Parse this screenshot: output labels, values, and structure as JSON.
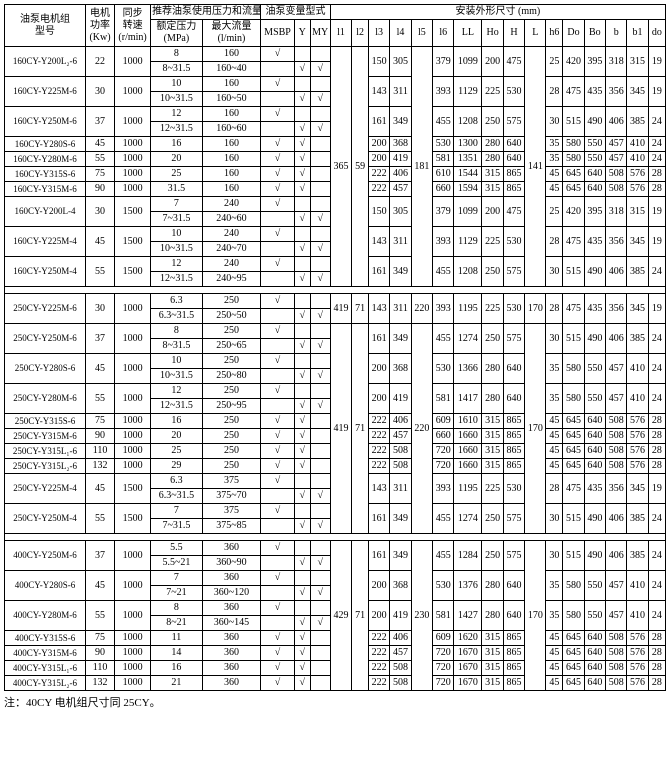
{
  "headers": {
    "model": "油泵电机组\n型号",
    "power": "电机\n功率\n(Kw)",
    "sync": "同步\n转速\n(r/min)",
    "pump_rec": "推荐油泵使用压力和流量",
    "var_type": "油泵变量型式",
    "install": "安装外形尺寸 (mm)",
    "rated_p": "额定压力\n(MPa)",
    "max_flow": "最大流量\n(l/min)",
    "cols": [
      "MSBP",
      "Y",
      "MY",
      "l1",
      "l2",
      "l3",
      "l4",
      "l5",
      "l6",
      "LL",
      "Ho",
      "H",
      "L",
      "h6",
      "Do",
      "Bo",
      "b",
      "b1",
      "do"
    ]
  },
  "note": "注：40CY 电机组尺寸同 25CY。",
  "s1": [
    {
      "m": "160CY-Y200L₂-6",
      "kw": "22",
      "rpm": "1000",
      "pa": "8",
      "pb": "8~31.5",
      "fa": "160",
      "fb": "160~40",
      "la": "√",
      "lb": "",
      "ya": "",
      "yb": "√",
      "mya": "",
      "myb": "√",
      "l3": "150",
      "l4": "305",
      "ll": "379",
      "lln": "1099",
      "ho": "200",
      "h": "475",
      "do": "25",
      "bo": "420",
      "b2": "395",
      "b": "318",
      "b1": "315",
      "dd": "19"
    },
    {
      "m": "160CY-Y225M-6",
      "kw": "30",
      "rpm": "1000",
      "pa": "10",
      "pb": "10~31.5",
      "fa": "160",
      "fb": "160~50",
      "la": "√",
      "lb": "",
      "ya": "",
      "yb": "√",
      "mya": "",
      "myb": "√",
      "l3": "143",
      "l4": "311",
      "ll": "393",
      "lln": "1129",
      "ho": "225",
      "h": "530",
      "do": "28",
      "bo": "475",
      "b2": "435",
      "b": "356",
      "b1": "345",
      "dd": "19"
    },
    {
      "m": "160CY-Y250M-6",
      "kw": "37",
      "rpm": "1000",
      "pa": "12",
      "pb": "12~31.5",
      "fa": "160",
      "fb": "160~60",
      "la": "√",
      "lb": "",
      "ya": "",
      "yb": "√",
      "mya": "",
      "myb": "√",
      "l3": "161",
      "l4": "349",
      "ll": "455",
      "lln": "1208",
      "ho": "250",
      "h": "575",
      "do": "30",
      "bo": "515",
      "b2": "490",
      "b": "406",
      "b1": "385",
      "dd": "24"
    },
    {
      "m": "160CY-Y280S-6",
      "kw": "45",
      "rpm": "1000",
      "pa": "16",
      "pb": "",
      "fa": "160",
      "fb": "",
      "la": "√",
      "lb": "",
      "ya": "√",
      "yb": "",
      "mya": "",
      "myb": "",
      "l3": "200",
      "l4": "368",
      "ll": "530",
      "lln": "1300",
      "ho": "280",
      "h": "640",
      "do": "35",
      "bo": "580",
      "b2": "550",
      "b": "457",
      "b1": "410",
      "dd": "24"
    },
    {
      "m": "160CY-Y280M-6",
      "kw": "55",
      "rpm": "1000",
      "pa": "20",
      "pb": "",
      "fa": "160",
      "fb": "",
      "la": "√",
      "lb": "",
      "ya": "√",
      "yb": "",
      "mya": "",
      "myb": "",
      "l3": "200",
      "l4": "419",
      "ll": "581",
      "lln": "1351",
      "ho": "280",
      "h": "640",
      "do": "35",
      "bo": "580",
      "b2": "550",
      "b": "457",
      "b1": "410",
      "dd": "24"
    },
    {
      "m": "160CY-Y315S-6",
      "kw": "75",
      "rpm": "1000",
      "pa": "25",
      "pb": "",
      "fa": "160",
      "fb": "",
      "la": "√",
      "lb": "",
      "ya": "√",
      "yb": "",
      "mya": "",
      "myb": "",
      "l3": "222",
      "l4": "406",
      "ll": "610",
      "lln": "1544",
      "ho": "315",
      "h": "865",
      "do": "45",
      "bo": "645",
      "b2": "640",
      "b": "508",
      "b1": "576",
      "dd": "28"
    },
    {
      "m": "160CY-Y315M-6",
      "kw": "90",
      "rpm": "1000",
      "pa": "31.5",
      "pb": "",
      "fa": "160",
      "fb": "",
      "la": "√",
      "lb": "",
      "ya": "√",
      "yb": "",
      "mya": "",
      "myb": "",
      "l3": "222",
      "l4": "457",
      "ll": "660",
      "lln": "1594",
      "ho": "315",
      "h": "865",
      "do": "45",
      "bo": "645",
      "b2": "640",
      "b": "508",
      "b1": "576",
      "dd": "28"
    },
    {
      "m": "160CY-Y200L-4",
      "kw": "30",
      "rpm": "1500",
      "pa": "7",
      "pb": "7~31.5",
      "fa": "240",
      "fb": "240~60",
      "la": "√",
      "lb": "",
      "ya": "",
      "yb": "√",
      "mya": "",
      "myb": "√",
      "l3": "150",
      "l4": "305",
      "ll": "379",
      "lln": "1099",
      "ho": "200",
      "h": "475",
      "do": "25",
      "bo": "420",
      "b2": "395",
      "b": "318",
      "b1": "315",
      "dd": "19"
    },
    {
      "m": "160CY-Y225M-4",
      "kw": "45",
      "rpm": "1500",
      "pa": "10",
      "pb": "10~31.5",
      "fa": "240",
      "fb": "240~70",
      "la": "√",
      "lb": "",
      "ya": "",
      "yb": "√",
      "mya": "",
      "myb": "√",
      "l3": "143",
      "l4": "311",
      "ll": "393",
      "lln": "1129",
      "ho": "225",
      "h": "530",
      "do": "28",
      "bo": "475",
      "b2": "435",
      "b": "356",
      "b1": "345",
      "dd": "19"
    },
    {
      "m": "160CY-Y250M-4",
      "kw": "55",
      "rpm": "1500",
      "pa": "12",
      "pb": "12~31.5",
      "fa": "240",
      "fb": "240~95",
      "la": "√",
      "lb": "",
      "ya": "",
      "yb": "√",
      "mya": "",
      "myb": "√",
      "l3": "161",
      "l4": "349",
      "ll": "455",
      "lln": "1208",
      "ho": "250",
      "h": "575",
      "do": "30",
      "bo": "515",
      "b2": "490",
      "b": "406",
      "b1": "385",
      "dd": "24"
    }
  ],
  "s1_span": {
    "l1": "365",
    "l2": "59",
    "l5": "181",
    "l": "141"
  },
  "s2": [
    {
      "m": "250CY-Y225M-6",
      "kw": "30",
      "rpm": "1000",
      "pa": "6.3",
      "pb": "6.3~31.5",
      "fa": "250",
      "fb": "250~50",
      "la": "√",
      "lb": "",
      "ya": "",
      "yb": "√",
      "mya": "",
      "myb": "√",
      "l1": "419",
      "l2": "71",
      "l3": "143",
      "l4": "311",
      "l5": "220",
      "ll": "393",
      "lln": "1195",
      "ho": "225",
      "h": "530",
      "l": "170",
      "do": "28",
      "bo": "475",
      "b2": "435",
      "b": "356",
      "b1": "345",
      "dd": "19"
    },
    {
      "m": "250CY-Y250M-6",
      "kw": "37",
      "rpm": "1000",
      "pa": "8",
      "pb": "8~31.5",
      "fa": "250",
      "fb": "250~65",
      "la": "√",
      "lb": "",
      "ya": "",
      "yb": "√",
      "mya": "",
      "myb": "√",
      "l3": "161",
      "l4": "349",
      "ll": "455",
      "lln": "1274",
      "ho": "250",
      "h": "575",
      "do": "30",
      "bo": "515",
      "b2": "490",
      "b": "406",
      "b1": "385",
      "dd": "24"
    },
    {
      "m": "250CY-Y280S-6",
      "kw": "45",
      "rpm": "1000",
      "pa": "10",
      "pb": "10~31.5",
      "fa": "250",
      "fb": "250~80",
      "la": "√",
      "lb": "",
      "ya": "",
      "yb": "√",
      "mya": "",
      "myb": "√",
      "l3": "200",
      "l4": "368",
      "ll": "530",
      "lln": "1366",
      "ho": "280",
      "h": "640",
      "do": "35",
      "bo": "580",
      "b2": "550",
      "b": "457",
      "b1": "410",
      "dd": "24"
    },
    {
      "m": "250CY-Y280M-6",
      "kw": "55",
      "rpm": "1000",
      "pa": "12",
      "pb": "12~31.5",
      "fa": "250",
      "fb": "250~95",
      "la": "√",
      "lb": "",
      "ya": "",
      "yb": "√",
      "mya": "",
      "myb": "√",
      "l3": "200",
      "l4": "419",
      "ll": "581",
      "lln": "1417",
      "ho": "280",
      "h": "640",
      "do": "35",
      "bo": "580",
      "b2": "550",
      "b": "457",
      "b1": "410",
      "dd": "24"
    },
    {
      "m": "250CY-Y315S-6",
      "kw": "75",
      "rpm": "1000",
      "pa": "16",
      "pb": "",
      "fa": "250",
      "fb": "",
      "la": "√",
      "lb": "",
      "ya": "√",
      "yb": "",
      "mya": "",
      "myb": "",
      "l3": "222",
      "l4": "406",
      "ll": "609",
      "lln": "1610",
      "ho": "315",
      "h": "865",
      "do": "45",
      "bo": "645",
      "b2": "640",
      "b": "508",
      "b1": "576",
      "dd": "28"
    },
    {
      "m": "250CY-Y315M-6",
      "kw": "90",
      "rpm": "1000",
      "pa": "20",
      "pb": "",
      "fa": "250",
      "fb": "",
      "la": "√",
      "lb": "",
      "ya": "√",
      "yb": "",
      "mya": "",
      "myb": "",
      "l3": "222",
      "l4": "457",
      "ll": "660",
      "lln": "1660",
      "ho": "315",
      "h": "865",
      "do": "45",
      "bo": "645",
      "b2": "640",
      "b": "508",
      "b1": "576",
      "dd": "28"
    },
    {
      "m": "250CY-Y315L₁-6",
      "kw": "110",
      "rpm": "1000",
      "pa": "25",
      "pb": "",
      "fa": "250",
      "fb": "",
      "la": "√",
      "lb": "",
      "ya": "√",
      "yb": "",
      "mya": "",
      "myb": "",
      "l3": "222",
      "l4": "508",
      "ll": "720",
      "lln": "1660",
      "ho": "315",
      "h": "865",
      "do": "45",
      "bo": "645",
      "b2": "640",
      "b": "508",
      "b1": "576",
      "dd": "28"
    },
    {
      "m": "250CY-Y315L₂-6",
      "kw": "132",
      "rpm": "1000",
      "pa": "29",
      "pb": "",
      "fa": "250",
      "fb": "",
      "la": "√",
      "lb": "",
      "ya": "√",
      "yb": "",
      "mya": "",
      "myb": "",
      "l3": "222",
      "l4": "508",
      "ll": "720",
      "lln": "1660",
      "ho": "315",
      "h": "865",
      "do": "45",
      "bo": "645",
      "b2": "640",
      "b": "508",
      "b1": "576",
      "dd": "28"
    },
    {
      "m": "250CY-Y225M-4",
      "kw": "45",
      "rpm": "1500",
      "pa": "6.3",
      "pb": "6.3~31.5",
      "fa": "375",
      "fb": "375~70",
      "la": "√",
      "lb": "",
      "ya": "",
      "yb": "√",
      "mya": "",
      "myb": "√",
      "l3": "143",
      "l4": "311",
      "ll": "393",
      "lln": "1195",
      "ho": "225",
      "h": "530",
      "do": "28",
      "bo": "475",
      "b2": "435",
      "b": "356",
      "b1": "345",
      "dd": "19"
    },
    {
      "m": "250CY-Y250M-4",
      "kw": "55",
      "rpm": "1500",
      "pa": "7",
      "pb": "7~31.5",
      "fa": "375",
      "fb": "375~85",
      "la": "√",
      "lb": "",
      "ya": "",
      "yb": "√",
      "mya": "",
      "myb": "√",
      "l3": "161",
      "l4": "349",
      "ll": "455",
      "lln": "1274",
      "ho": "250",
      "h": "575",
      "do": "30",
      "bo": "515",
      "b2": "490",
      "b": "406",
      "b1": "385",
      "dd": "24"
    }
  ],
  "s2_span": {
    "l1": "419",
    "l2": "71",
    "l5": "220",
    "l": "170"
  },
  "s3": [
    {
      "m": "400CY-Y250M-6",
      "kw": "37",
      "rpm": "1000",
      "pa": "5.5",
      "pb": "5.5~21",
      "fa": "360",
      "fb": "360~90",
      "la": "√",
      "lb": "",
      "ya": "",
      "yb": "√",
      "mya": "",
      "myb": "√",
      "l3": "161",
      "l4": "349",
      "ll": "455",
      "lln": "1284",
      "ho": "250",
      "h": "575",
      "do": "30",
      "bo": "515",
      "b2": "490",
      "b": "406",
      "b1": "385",
      "dd": "24"
    },
    {
      "m": "400CY-Y280S-6",
      "kw": "45",
      "rpm": "1000",
      "pa": "7",
      "pb": "7~21",
      "fa": "360",
      "fb": "360~120",
      "la": "√",
      "lb": "",
      "ya": "",
      "yb": "√",
      "mya": "",
      "myb": "√",
      "l3": "200",
      "l4": "368",
      "ll": "530",
      "lln": "1376",
      "ho": "280",
      "h": "640",
      "do": "35",
      "bo": "580",
      "b2": "550",
      "b": "457",
      "b1": "410",
      "dd": "24"
    },
    {
      "m": "400CY-Y280M-6",
      "kw": "55",
      "rpm": "1000",
      "pa": "8",
      "pb": "8~21",
      "fa": "360",
      "fb": "360~145",
      "la": "√",
      "lb": "",
      "ya": "",
      "yb": "√",
      "mya": "",
      "myb": "√",
      "l3": "200",
      "l4": "419",
      "ll": "581",
      "lln": "1427",
      "ho": "280",
      "h": "640",
      "do": "35",
      "bo": "580",
      "b2": "550",
      "b": "457",
      "b1": "410",
      "dd": "24"
    },
    {
      "m": "400CY-Y315S-6",
      "kw": "75",
      "rpm": "1000",
      "pa": "11",
      "pb": "",
      "fa": "360",
      "fb": "",
      "la": "√",
      "lb": "",
      "ya": "√",
      "yb": "",
      "mya": "",
      "myb": "",
      "l3": "222",
      "l4": "406",
      "ll": "609",
      "lln": "1620",
      "ho": "315",
      "h": "865",
      "do": "45",
      "bo": "645",
      "b2": "640",
      "b": "508",
      "b1": "576",
      "dd": "28"
    },
    {
      "m": "400CY-Y315M-6",
      "kw": "90",
      "rpm": "1000",
      "pa": "14",
      "pb": "",
      "fa": "360",
      "fb": "",
      "la": "√",
      "lb": "",
      "ya": "√",
      "yb": "",
      "mya": "",
      "myb": "",
      "l3": "222",
      "l4": "457",
      "ll": "720",
      "lln": "1670",
      "ho": "315",
      "h": "865",
      "do": "45",
      "bo": "645",
      "b2": "640",
      "b": "508",
      "b1": "576",
      "dd": "28"
    },
    {
      "m": "400CY-Y315L₁-6",
      "kw": "110",
      "rpm": "1000",
      "pa": "16",
      "pb": "",
      "fa": "360",
      "fb": "",
      "la": "√",
      "lb": "",
      "ya": "√",
      "yb": "",
      "mya": "",
      "myb": "",
      "l3": "222",
      "l4": "508",
      "ll": "720",
      "lln": "1670",
      "ho": "315",
      "h": "865",
      "do": "45",
      "bo": "645",
      "b2": "640",
      "b": "508",
      "b1": "576",
      "dd": "28"
    },
    {
      "m": "400CY-Y315L₂-6",
      "kw": "132",
      "rpm": "1000",
      "pa": "21",
      "pb": "",
      "fa": "360",
      "fb": "",
      "la": "√",
      "lb": "",
      "ya": "√",
      "yb": "",
      "mya": "",
      "myb": "",
      "l3": "222",
      "l4": "508",
      "ll": "720",
      "lln": "1670",
      "ho": "315",
      "h": "865",
      "do": "45",
      "bo": "645",
      "b2": "640",
      "b": "508",
      "b1": "576",
      "dd": "28"
    }
  ],
  "s3_span": {
    "l1": "429",
    "l2": "71",
    "l5": "230",
    "l": "170"
  }
}
